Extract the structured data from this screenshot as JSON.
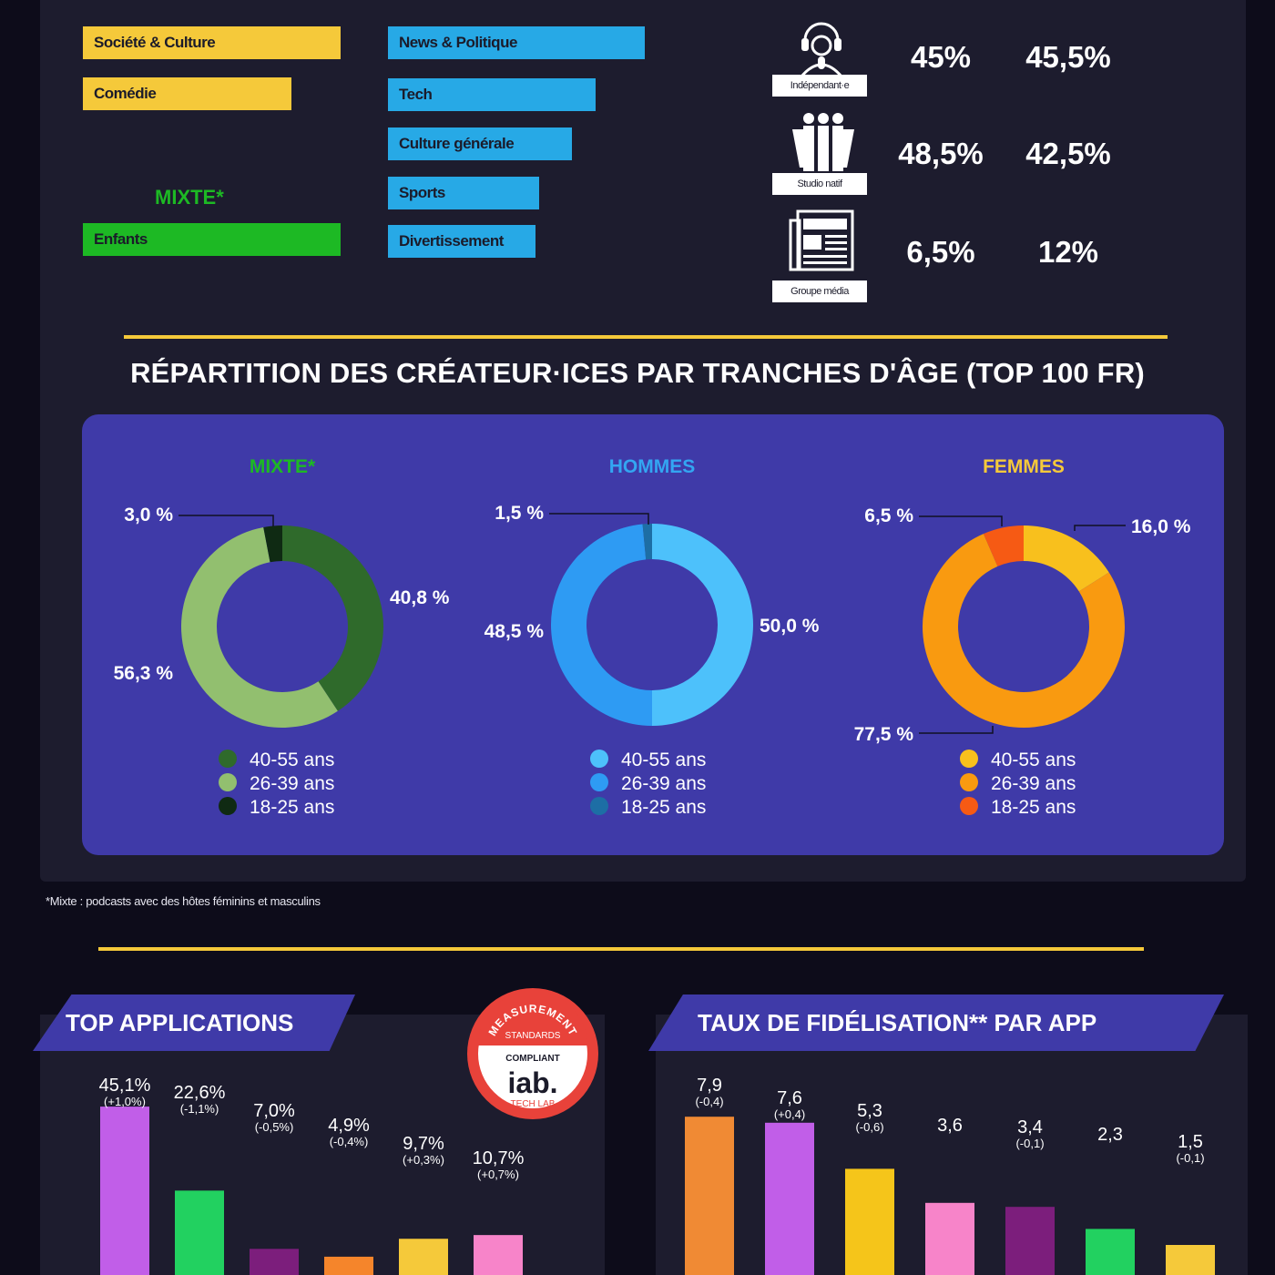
{
  "genres": {
    "feminine": [
      "Société & Culture",
      "Comédie"
    ],
    "masculine": [
      "News & Politique",
      "Tech",
      "Culture générale",
      "Sports",
      "Divertissement"
    ],
    "mixte_title": "MIXTE*",
    "mixte": [
      "Enfants"
    ]
  },
  "producers": [
    {
      "label": "Indépendant·e",
      "icon": "headset-mic-icon",
      "a": "45%",
      "b": "45,5%"
    },
    {
      "label": "Studio natif",
      "icon": "people-group-icon",
      "a": "48,5%",
      "b": "42,5%"
    },
    {
      "label": "Groupe média",
      "icon": "newspaper-icon",
      "a": "6,5%",
      "b": "12%"
    }
  ],
  "age_section": {
    "title": "RÉPARTITION DES CRÉATEUR·ICES PAR TRANCHES D'ÂGE (TOP 100 FR)"
  },
  "footnote": "*Mixte : podcasts avec des hôtes féminins et masculins",
  "badge": {
    "top": "MEASUREMENT",
    "standards": "STANDARDS",
    "compliant": "COMPLIANT",
    "brand": "iab.",
    "sub": "TECH LAB"
  },
  "colors": {
    "yellow": "#f5c93a",
    "blue": "#27a9e6",
    "green": "#1db924",
    "panel": "#3f3aa8"
  },
  "chart_data": [
    {
      "type": "pie",
      "title": "MIXTE*",
      "title_color": "#1db924",
      "legend": [
        "40-55 ans",
        "26-39 ans",
        "18-25 ans"
      ],
      "values": [
        40.8,
        56.3,
        3.0
      ],
      "labels": [
        "40,8 %",
        "56,3 %",
        "3,0 %"
      ],
      "colors": [
        "#2f6a2b",
        "#92bf6f",
        "#0f2a13"
      ]
    },
    {
      "type": "pie",
      "title": "HOMMES",
      "title_color": "#33a6f2",
      "legend": [
        "40-55 ans",
        "26-39 ans",
        "18-25 ans"
      ],
      "values": [
        50.0,
        48.5,
        1.5
      ],
      "labels": [
        "50,0 %",
        "48,5 %",
        "1,5 %"
      ],
      "colors": [
        "#4dc1fb",
        "#2e9bf3",
        "#1d6ea5"
      ]
    },
    {
      "type": "pie",
      "title": "FEMMES",
      "title_color": "#f5c93a",
      "legend": [
        "40-55 ans",
        "26-39 ans",
        "18-25 ans"
      ],
      "values": [
        16.0,
        77.5,
        6.5
      ],
      "labels": [
        "16,0 %",
        "77,5 %",
        "6,5 %"
      ],
      "colors": [
        "#f8c01d",
        "#f99a10",
        "#f65a14"
      ]
    },
    {
      "type": "bar",
      "title": "TOP APPLICATIONS",
      "values": [
        45.1,
        22.6,
        7.0,
        4.9,
        9.7,
        10.7
      ],
      "labels": [
        "45,1%",
        "22,6%",
        "7,0%",
        "4,9%",
        "9,7%",
        "10,7%"
      ],
      "deltas": [
        "(+1,0%)",
        "(-1,1%)",
        "(-0,5%)",
        "(-0,4%)",
        "(+0,3%)",
        "(+0,7%)"
      ],
      "colors": [
        "#c15ee8",
        "#22d160",
        "#7c1e7c",
        "#f5852b",
        "#f5c93a",
        "#f784c9"
      ]
    },
    {
      "type": "bar",
      "title": "TAUX DE FIDÉLISATION** PAR APP",
      "values": [
        7.9,
        7.6,
        5.3,
        3.6,
        3.4,
        2.3,
        1.5
      ],
      "labels": [
        "7,9",
        "7,6",
        "5,3",
        "3,6",
        "3,4",
        "2,3",
        "1,5"
      ],
      "deltas": [
        "(-0,4)",
        "(+0,4)",
        "(-0,6)",
        "",
        "(-0,1)",
        "",
        "(-0,1)"
      ],
      "colors": [
        "#f08a34",
        "#c15ee8",
        "#f5c51a",
        "#f784c9",
        "#7c1e7c",
        "#22d160",
        "#f5c93a"
      ]
    }
  ]
}
